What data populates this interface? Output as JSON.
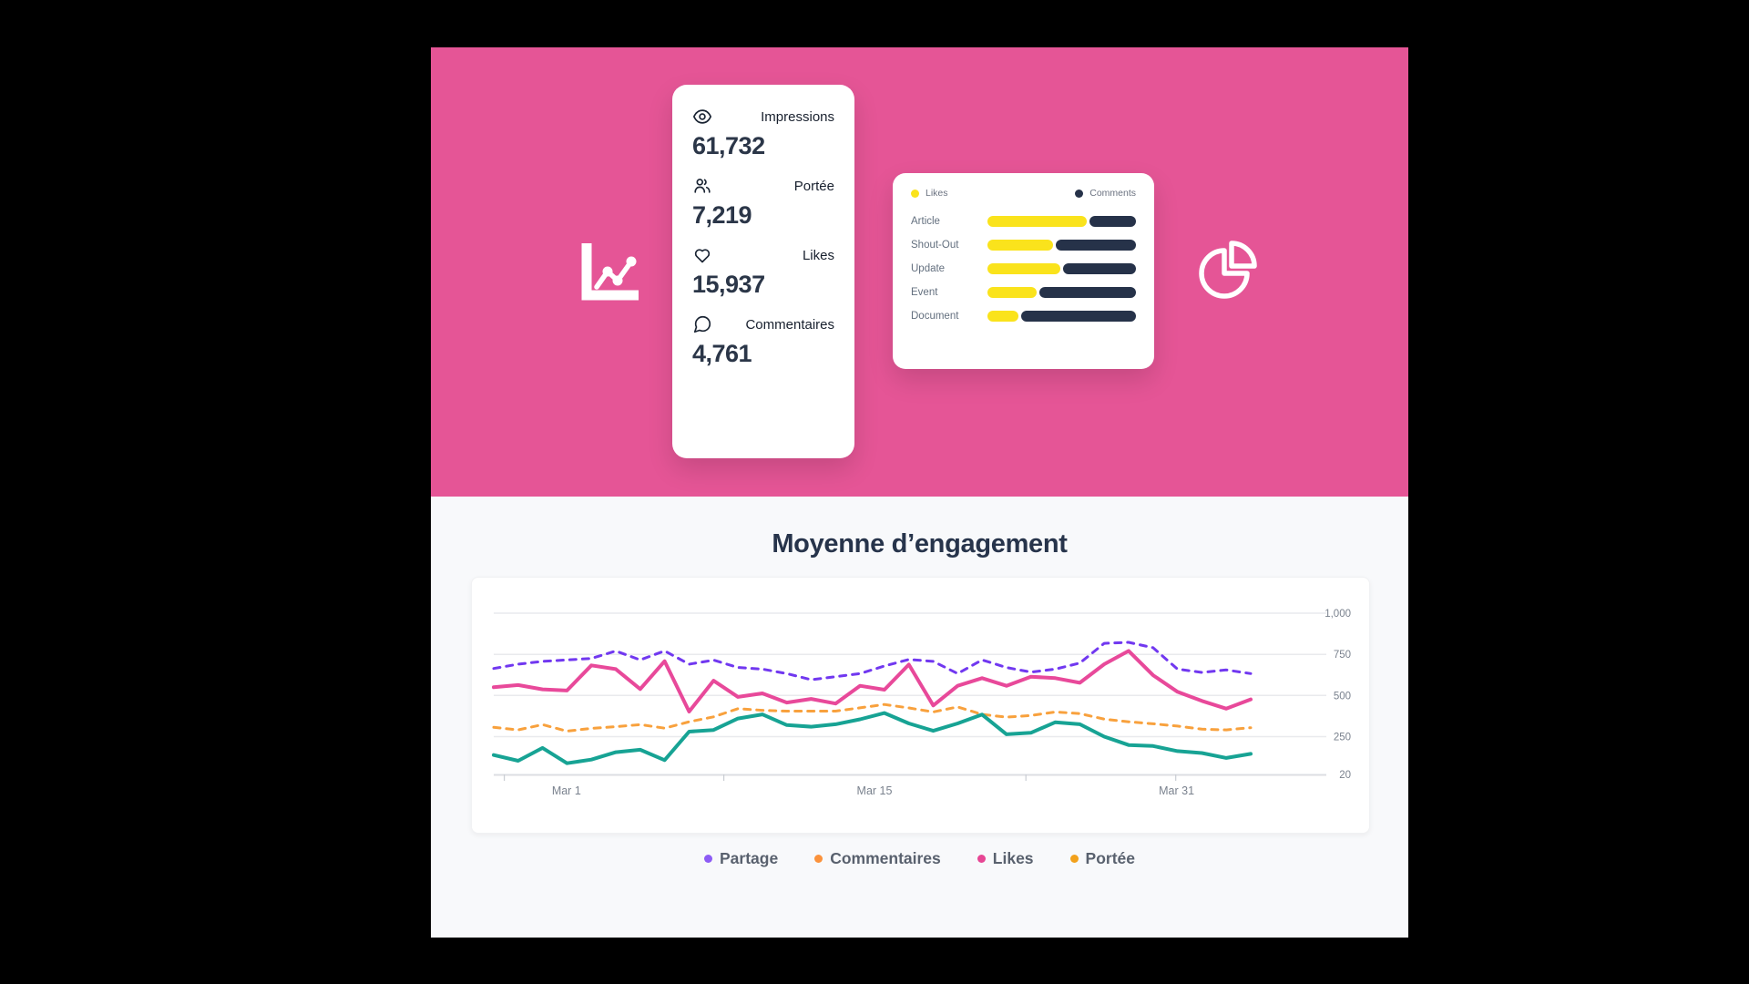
{
  "hero": {
    "bg_color": "#E55596",
    "stats_card": {
      "items": [
        {
          "icon": "eye-icon",
          "label": "Impressions",
          "value": "61,732"
        },
        {
          "icon": "users-icon",
          "label": "Portée",
          "value": "7,219"
        },
        {
          "icon": "heart-icon",
          "label": "Likes",
          "value": "15,937"
        },
        {
          "icon": "comment-icon",
          "label": "Commentaires",
          "value": "4,761"
        }
      ]
    },
    "bars_card": {
      "legend": [
        {
          "label": "Likes",
          "color": "#FAE31C"
        },
        {
          "label": "Comments",
          "color": "#263249"
        }
      ],
      "rows": [
        {
          "label": "Article",
          "likes_pct": 67,
          "comments_pct": 31
        },
        {
          "label": "Shout-Out",
          "likes_pct": 44,
          "comments_pct": 54
        },
        {
          "label": "Update",
          "likes_pct": 49,
          "comments_pct": 49
        },
        {
          "label": "Event",
          "likes_pct": 33,
          "comments_pct": 65
        },
        {
          "label": "Document",
          "likes_pct": 21,
          "comments_pct": 77
        }
      ]
    },
    "icons": {
      "left": "line-chart-icon",
      "right": "pie-chart-icon"
    }
  },
  "engagement": {
    "title": "Moyenne d’engagement",
    "legend": [
      {
        "label": "Partage",
        "color": "#8D5CF5"
      },
      {
        "label": "Commentaires",
        "color": "#FB923C"
      },
      {
        "label": "Likes",
        "color": "#E74694"
      },
      {
        "label": "Portée",
        "color": "#F2A11C"
      }
    ]
  },
  "chart_data": {
    "type": "line",
    "title": "Moyenne d’engagement",
    "grid": true,
    "legend_position": "bottom",
    "ylim": [
      20,
      1000
    ],
    "y_ticks": [
      1000,
      750,
      500,
      250,
      20
    ],
    "y_tick_labels": [
      "1,000",
      "750",
      "500",
      "250",
      "20"
    ],
    "x_tick_labels": [
      "Mar 1",
      "Mar 15",
      "Mar 31"
    ],
    "x_tick_pos": [
      0.096,
      0.503,
      0.902
    ],
    "x_tick_marks": [
      0.014,
      0.304,
      0.703,
      0.901
    ],
    "series": [
      {
        "name": "Partage",
        "color": "#7138F0",
        "style": "dashed",
        "values": [
          664,
          690,
          707,
          716,
          725,
          770,
          716,
          771,
          690,
          715,
          670,
          660,
          633,
          596,
          614,
          633,
          679,
          719,
          707,
          633,
          716,
          670,
          642,
          660,
          697,
          817,
          823,
          790,
          660,
          640,
          655,
          633
        ]
      },
      {
        "name": "Likes",
        "color": "#E8499A",
        "style": "solid",
        "values": [
          550,
          563,
          537,
          530,
          683,
          660,
          539,
          708,
          402,
          590,
          491,
          513,
          457,
          479,
          451,
          559,
          535,
          688,
          439,
          559,
          605,
          559,
          614,
          605,
          577,
          690,
          771,
          623,
          522,
          467,
          420,
          476
        ]
      },
      {
        "name": "Commentaires",
        "color": "#F8A13D",
        "style": "dashed",
        "values": [
          306,
          291,
          323,
          283,
          300,
          310,
          323,
          301,
          340,
          370,
          420,
          410,
          405,
          405,
          405,
          425,
          445,
          424,
          400,
          430,
          385,
          368,
          378,
          400,
          390,
          356,
          340,
          328,
          314,
          295,
          291,
          304
        ]
      },
      {
        "name": "Portée",
        "color": "#17A394",
        "style": "solid",
        "values": [
          138,
          103,
          181,
          88,
          110,
          155,
          170,
          107,
          280,
          290,
          360,
          385,
          320,
          310,
          325,
          355,
          393,
          330,
          285,
          330,
          384,
          264,
          273,
          337,
          325,
          250,
          199,
          193,
          162,
          150,
          120,
          145
        ]
      }
    ]
  }
}
